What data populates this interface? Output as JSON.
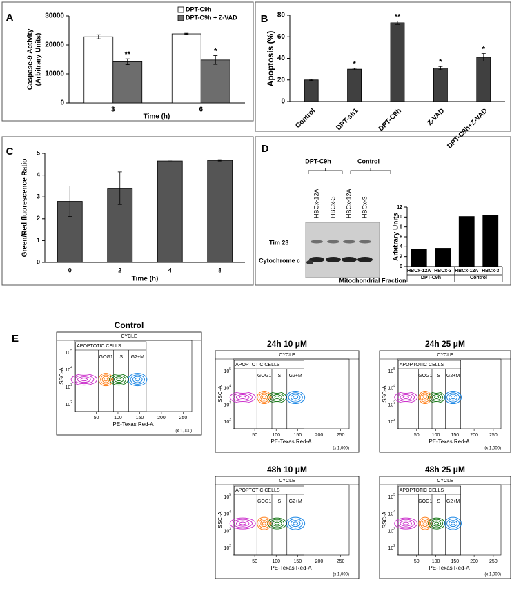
{
  "chart_data": [
    {
      "panel": "A",
      "type": "bar",
      "categories": [
        "3",
        "6"
      ],
      "xlabel": "Time (h)",
      "ylabel": [
        "Caspase-9 Activity",
        "(Arbitrary Units)"
      ],
      "series": [
        {
          "name": "DPT-C9h",
          "color": "#ffffff",
          "values": [
            22800,
            23800
          ],
          "errors": [
            700,
            200
          ]
        },
        {
          "name": "DPT-C9h + Z-VAD",
          "color": "#6d6d6d",
          "values": [
            14200,
            14800
          ],
          "errors": [
            1000,
            1500
          ],
          "annotations": [
            "**",
            "*"
          ]
        }
      ],
      "ylim": [
        0,
        30000
      ],
      "yticks": [
        0,
        10000,
        20000,
        30000
      ],
      "legend": "top-right"
    },
    {
      "panel": "B",
      "type": "bar",
      "categories": [
        "Control",
        "DPT-sh1",
        "DPT-C9h",
        "Z-VAD",
        "DPT-C9h+Z-VAD"
      ],
      "ylabel": "Apoptosis (%)",
      "series": [
        {
          "color": "#404040",
          "values": [
            20,
            30,
            73,
            31,
            41
          ],
          "errors": [
            0.6,
            0.8,
            1.5,
            1.5,
            3.5
          ],
          "annotations": [
            null,
            "*",
            "**",
            "*",
            "*"
          ]
        }
      ],
      "ylim": [
        0,
        80
      ],
      "yticks": [
        0,
        20,
        40,
        60,
        80
      ],
      "rotate_labels": true
    },
    {
      "panel": "C",
      "type": "bar",
      "categories": [
        "0",
        "2",
        "4",
        "8"
      ],
      "xlabel": "Time (h)",
      "ylabel": "Green/Red fluorescence Ratio",
      "series": [
        {
          "color": "#555555",
          "values": [
            2.8,
            3.4,
            4.65,
            4.68
          ],
          "errors": [
            0.7,
            0.75,
            0,
            0.03
          ]
        }
      ],
      "ylim": [
        0,
        5
      ],
      "yticks": [
        0,
        1,
        2,
        3,
        4,
        5
      ]
    },
    {
      "panel": "D",
      "type": "bar",
      "categories": [
        "HBCx-12A",
        "HBCx-3",
        "HBCx-12A",
        "HBCx-3"
      ],
      "group_labels": [
        "DPT-C9h",
        "Control"
      ],
      "ylabel": "Arbitrary Units",
      "series": [
        {
          "color": "#000000",
          "values": [
            3.5,
            3.7,
            10.1,
            10.3
          ]
        }
      ],
      "ylim": [
        0,
        12
      ],
      "yticks": [
        0,
        2,
        4,
        6,
        8,
        10,
        12
      ]
    }
  ],
  "blot": {
    "group_labels": [
      "DPT-C9h",
      "Control"
    ],
    "lanes": [
      "HBCx-12A",
      "HBCx-3",
      "HBCx-12A",
      "HBCx-3"
    ],
    "rows": [
      "Tim 23",
      "Cytochrome c"
    ],
    "caption": "Mitochondrial Fraction"
  },
  "flow": {
    "panel": "E",
    "header": "CYCLE",
    "gates": [
      "APOPTOTIC CELLS",
      "GOG1",
      "S",
      "G2+M"
    ],
    "xlabel": "PE-Texas Red-A",
    "xunit": "(x 1,000)",
    "ylabel": "SSC-A",
    "xticks": [
      50,
      100,
      150,
      200,
      250
    ],
    "yticks": [
      {
        "base": "10",
        "exp": "2"
      },
      {
        "base": "10",
        "exp": "3"
      },
      {
        "base": "10",
        "exp": "4"
      },
      {
        "base": "10",
        "exp": "5"
      }
    ],
    "plots": [
      {
        "title": "Control"
      },
      {
        "title": "24h 10 μM"
      },
      {
        "title": "24h 25 μM"
      },
      {
        "title": "48h 10 μM"
      },
      {
        "title": "48h 25 μM"
      }
    ]
  }
}
